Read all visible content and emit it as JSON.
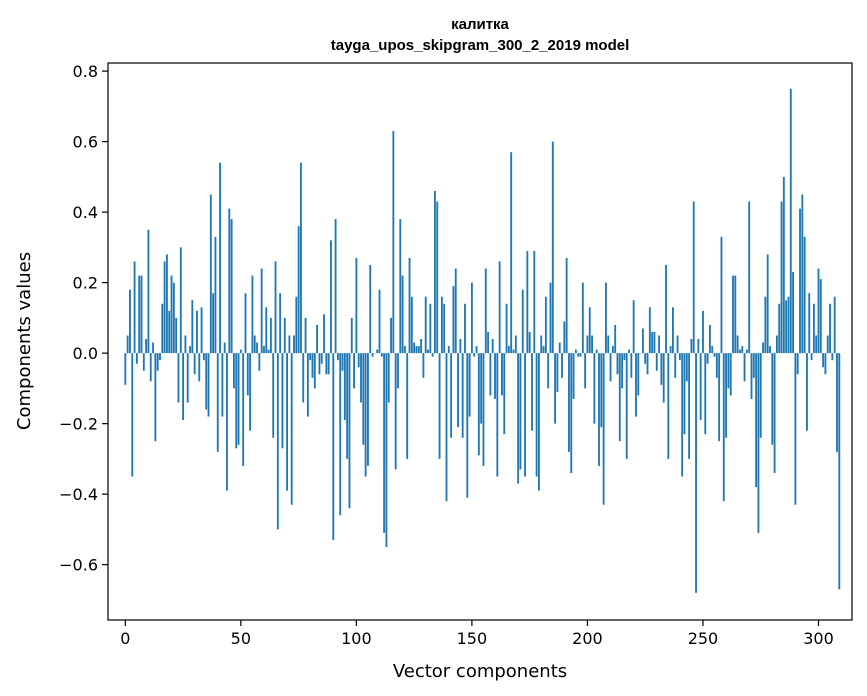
{
  "chart_data": {
    "type": "bar",
    "title_line1": "калитка",
    "title_line2": "tayga_upos_skipgram_300_2_2019 model",
    "xlabel": "Vector components",
    "ylabel": "Components values",
    "xlim": [
      -7.5,
      314.5
    ],
    "ylim": [
      -0.757,
      0.823
    ],
    "xticks": [
      0,
      50,
      100,
      150,
      200,
      250,
      300
    ],
    "xtick_labels": [
      "0",
      "50",
      "100",
      "150",
      "200",
      "250",
      "300"
    ],
    "yticks": [
      -0.6,
      -0.4,
      -0.2,
      0.0,
      0.2,
      0.4,
      0.6,
      0.8
    ],
    "ytick_labels": [
      "−0.6",
      "−0.4",
      "−0.2",
      "0.0",
      "0.2",
      "0.4",
      "0.6",
      "0.8"
    ],
    "bar_color": "#1f77b4",
    "grid": false,
    "values": [
      -0.09,
      0.05,
      0.18,
      -0.35,
      0.26,
      -0.03,
      0.22,
      0.22,
      -0.05,
      0.04,
      0.35,
      -0.08,
      0.03,
      -0.25,
      -0.05,
      -0.02,
      0.14,
      0.26,
      0.28,
      0.12,
      0.22,
      0.2,
      0.1,
      -0.14,
      0.3,
      -0.19,
      0.05,
      -0.14,
      0.02,
      0.15,
      -0.06,
      0.12,
      -0.08,
      0.13,
      -0.02,
      -0.16,
      -0.18,
      0.45,
      0.17,
      0.33,
      -0.28,
      0.54,
      -0.18,
      0.03,
      -0.39,
      0.41,
      0.38,
      -0.1,
      -0.27,
      -0.26,
      0.01,
      -0.32,
      0.17,
      -0.12,
      -0.22,
      0.22,
      0.05,
      0.03,
      -0.05,
      0.24,
      0.02,
      0.13,
      0.01,
      0.1,
      -0.24,
      0.26,
      -0.5,
      0.17,
      -0.27,
      0.1,
      -0.39,
      0.05,
      -0.43,
      0.05,
      0.16,
      0.36,
      0.54,
      -0.14,
      0.1,
      -0.18,
      -0.02,
      -0.07,
      -0.1,
      0.08,
      -0.06,
      -0.03,
      0.11,
      -0.06,
      -0.06,
      0.32,
      -0.53,
      0.38,
      -0.02,
      -0.46,
      -0.05,
      -0.19,
      -0.3,
      -0.44,
      0.1,
      -0.1,
      0.27,
      -0.04,
      -0.14,
      -0.26,
      -0.35,
      -0.32,
      0.25,
      -0.01,
      0.0,
      0.01,
      0.18,
      -0.01,
      -0.51,
      -0.55,
      -0.14,
      0.1,
      0.63,
      -0.33,
      -0.1,
      0.38,
      0.22,
      0.02,
      -0.3,
      0.27,
      0.16,
      0.03,
      0.02,
      0.02,
      0.04,
      -0.07,
      0.16,
      0.01,
      0.14,
      -0.01,
      0.46,
      0.43,
      -0.3,
      0.16,
      0.14,
      -0.42,
      0.02,
      -0.24,
      0.19,
      0.24,
      -0.21,
      0.04,
      -0.24,
      0.14,
      -0.41,
      -0.18,
      0.2,
      -0.01,
      0.02,
      -0.29,
      -0.2,
      -0.32,
      0.24,
      0.06,
      -0.12,
      0.04,
      -0.13,
      -0.35,
      0.26,
      -0.12,
      -0.23,
      0.14,
      0.02,
      0.57,
      0.01,
      0.05,
      -0.37,
      -0.33,
      0.18,
      -0.35,
      0.29,
      0.06,
      -0.22,
      0.29,
      -0.35,
      -0.39,
      0.05,
      0.02,
      0.16,
      -0.1,
      0.2,
      0.6,
      -0.2,
      -0.11,
      0.03,
      -0.07,
      0.09,
      0.27,
      -0.28,
      -0.34,
      -0.13,
      0.01,
      -0.01,
      -0.01,
      0.2,
      -0.1,
      0.05,
      0.13,
      0.05,
      -0.2,
      0.01,
      -0.32,
      -0.21,
      -0.43,
      0.2,
      0.05,
      -0.08,
      0.02,
      0.08,
      -0.06,
      -0.25,
      -0.1,
      -0.02,
      -0.3,
      0.01,
      -0.07,
      0.15,
      -0.18,
      -0.12,
      0.0,
      0.07,
      -0.03,
      -0.06,
      0.13,
      0.06,
      0.06,
      -0.05,
      0.05,
      -0.09,
      -0.14,
      0.25,
      -0.3,
      0.02,
      0.13,
      -0.07,
      0.05,
      -0.02,
      -0.35,
      -0.23,
      -0.08,
      -0.3,
      0.04,
      0.43,
      -0.68,
      0.04,
      -0.19,
      0.12,
      -0.23,
      -0.03,
      0.08,
      0.02,
      -0.01,
      -0.07,
      -0.25,
      0.33,
      -0.42,
      -0.24,
      -0.1,
      -0.12,
      0.22,
      0.22,
      0.05,
      0.01,
      0.02,
      -0.08,
      0.01,
      0.43,
      -0.13,
      -0.07,
      -0.38,
      -0.51,
      -0.24,
      0.03,
      0.16,
      0.28,
      0.02,
      -0.26,
      -0.34,
      0.05,
      0.14,
      0.43,
      0.5,
      0.15,
      0.16,
      0.75,
      0.23,
      -0.43,
      -0.06,
      0.41,
      0.45,
      0.33,
      -0.22,
      0.17,
      -0.02,
      0.14,
      0.05,
      0.24,
      0.21,
      -0.04,
      -0.06,
      0.05,
      0.14,
      -0.02,
      0.16,
      -0.28,
      -0.67
    ]
  }
}
